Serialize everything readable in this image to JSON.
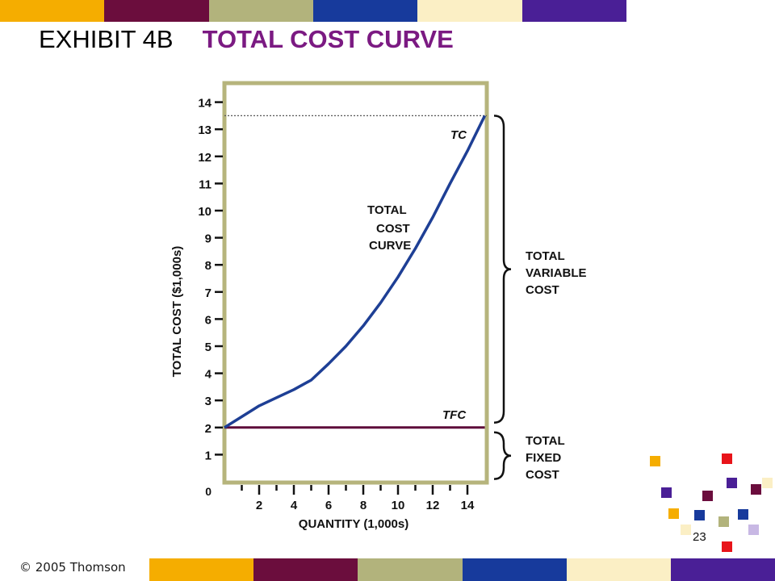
{
  "slide": {
    "title_prefix": "EXHIBIT 4B",
    "title_main": "TOTAL COST CURVE",
    "copyright": "© 2005 Thomson",
    "page_number": "23",
    "top_bar_colors": [
      "#f5ad00",
      "#6b0d3d",
      "#b2b37c",
      "#173a9c",
      "#fbefc5",
      "#4a1f96"
    ],
    "bottom_bar_colors": [
      "#f5ad00",
      "#6b0d3d",
      "#b2b37c",
      "#173a9c",
      "#fbefc5",
      "#4a1f96"
    ],
    "accent_title_color": "#7b1a82"
  },
  "chart_data": {
    "type": "line",
    "x": [
      0,
      1,
      2,
      3,
      4,
      5,
      6,
      7,
      8,
      9,
      10,
      11,
      12,
      13,
      14,
      15
    ],
    "series": [
      {
        "name": "TC",
        "values": [
          2.0,
          2.4,
          2.8,
          3.1,
          3.4,
          3.75,
          4.35,
          5.0,
          5.75,
          6.6,
          7.55,
          8.6,
          9.75,
          11.0,
          12.2,
          13.5
        ],
        "color": "#1e3f95"
      },
      {
        "name": "TFC",
        "values": [
          2.0,
          2.0,
          2.0,
          2.0,
          2.0,
          2.0,
          2.0,
          2.0,
          2.0,
          2.0,
          2.0,
          2.0,
          2.0,
          2.0,
          2.0,
          2.0
        ],
        "color": "#5e0c3a"
      }
    ],
    "xlabel": "QUANTITY (1,000s)",
    "ylabel": "TOTAL COST ($1,000s)",
    "x_ticks": [
      2,
      4,
      6,
      8,
      10,
      12,
      14
    ],
    "y_ticks": [
      1,
      2,
      3,
      4,
      5,
      6,
      7,
      8,
      9,
      10,
      11,
      12,
      13,
      14
    ],
    "origin_label": "0",
    "xlim": [
      0,
      15
    ],
    "ylim": [
      0,
      14.6
    ],
    "max_line": 13.5,
    "frame_color": "#b6b47c",
    "annotations": {
      "curve_label": [
        "TOTAL",
        "COST",
        "CURVE"
      ],
      "variable_cost": [
        "TOTAL",
        "VARIABLE",
        "COST"
      ],
      "fixed_cost": [
        "TOTAL",
        "FIXED",
        "COST"
      ]
    }
  }
}
